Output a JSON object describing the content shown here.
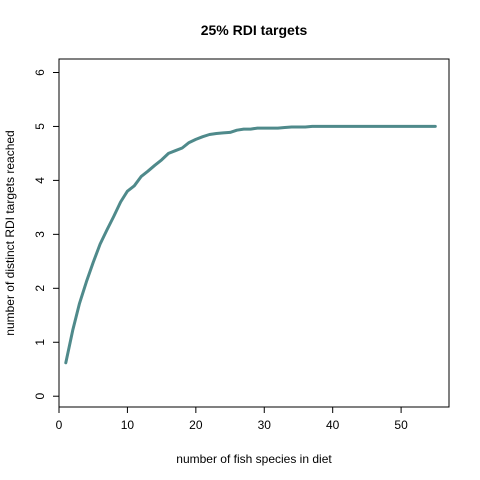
{
  "chart_data": {
    "type": "line",
    "title": "25% RDI targets",
    "xlabel": "number of fish species in diet",
    "ylabel": "number of distinct RDI targets reached",
    "xlim": [
      0,
      57
    ],
    "ylim": [
      -0.2,
      6.25
    ],
    "xticks": [
      "0",
      "10",
      "20",
      "30",
      "40",
      "50"
    ],
    "yticks": [
      "0",
      "1",
      "2",
      "3",
      "4",
      "5",
      "6"
    ],
    "grid": false,
    "legend": "none",
    "line_color": "#4f8a8b",
    "series": [
      {
        "x": [
          1,
          2,
          3,
          4,
          5,
          6,
          7,
          8,
          9,
          10,
          11,
          12,
          13,
          14,
          15,
          16,
          17,
          18,
          19,
          20,
          21,
          22,
          23,
          24,
          25,
          26,
          27,
          28,
          29,
          30,
          31,
          32,
          33,
          34,
          35,
          36,
          37,
          38,
          39,
          40,
          41,
          42,
          43,
          44,
          45,
          46,
          47,
          48,
          49,
          50,
          51,
          52,
          53,
          54,
          55
        ],
        "values": [
          0.62,
          1.22,
          1.72,
          2.12,
          2.48,
          2.82,
          3.08,
          3.33,
          3.6,
          3.8,
          3.9,
          4.07,
          4.17,
          4.28,
          4.38,
          4.5,
          4.55,
          4.6,
          4.7,
          4.76,
          4.81,
          4.85,
          4.87,
          4.88,
          4.89,
          4.93,
          4.95,
          4.95,
          4.97,
          4.97,
          4.97,
          4.97,
          4.98,
          4.99,
          4.99,
          4.99,
          5.0,
          5.0,
          5.0,
          5.0,
          5.0,
          5.0,
          5.0,
          5.0,
          5.0,
          5.0,
          5.0,
          5.0,
          5.0,
          5.0,
          5.0,
          5.0,
          5.0,
          5.0,
          5.0
        ]
      }
    ]
  }
}
